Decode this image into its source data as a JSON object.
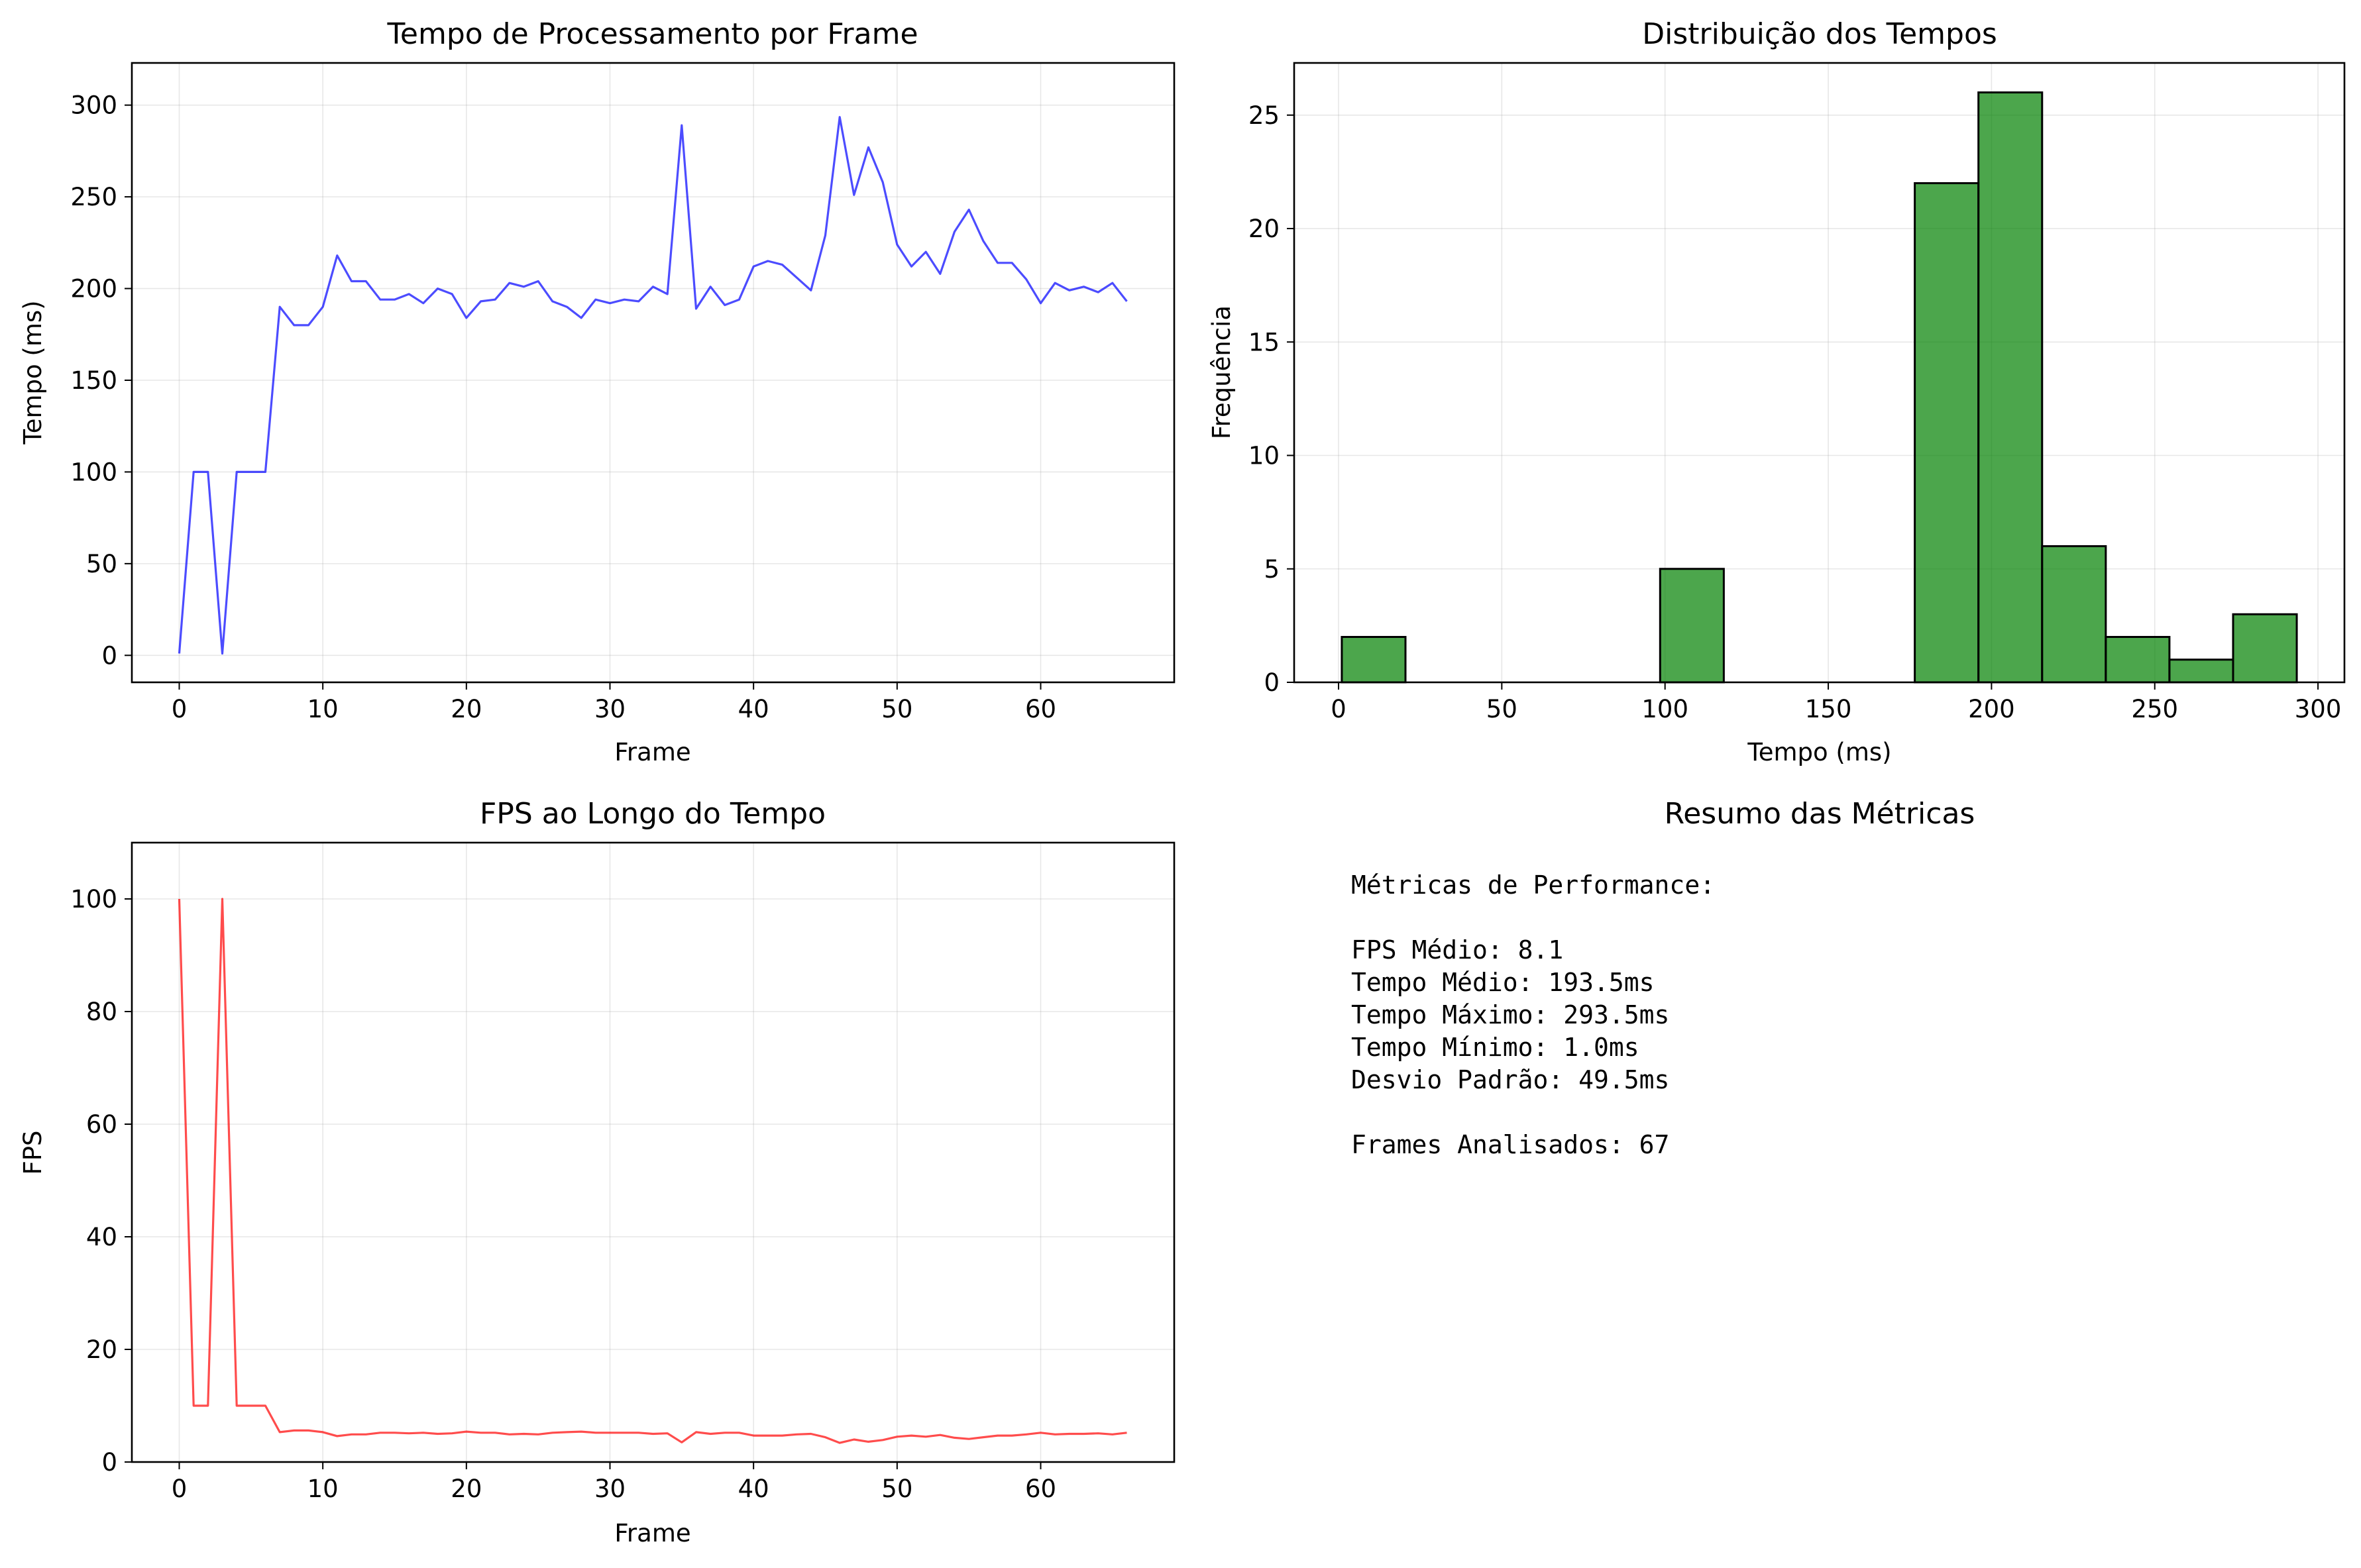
{
  "chart_data": [
    {
      "type": "line",
      "title": "Tempo de Processamento por Frame",
      "xlabel": "Frame",
      "ylabel": "Tempo (ms)",
      "xlim": [
        -3.3,
        69.3
      ],
      "ylim": [
        -14.7,
        323
      ],
      "xticks": [
        0,
        10,
        20,
        30,
        40,
        50,
        60
      ],
      "yticks": [
        0,
        50,
        100,
        150,
        200,
        250,
        300
      ],
      "grid": true,
      "color": "#0000ff",
      "series": [
        {
          "x": [
            0,
            1,
            2,
            3,
            4,
            5,
            6,
            7,
            8,
            9,
            10,
            11,
            12,
            13,
            14,
            15,
            16,
            17,
            18,
            19,
            20,
            21,
            22,
            23,
            24,
            25,
            26,
            27,
            28,
            29,
            30,
            31,
            32,
            33,
            34,
            35,
            36,
            37,
            38,
            39,
            40,
            41,
            42,
            43,
            44,
            45,
            46,
            47,
            48,
            49,
            50,
            51,
            52,
            53,
            54,
            55,
            56,
            57,
            58,
            59,
            60,
            61,
            62,
            63,
            64,
            65,
            66
          ],
          "values": [
            1,
            100,
            100,
            1,
            100,
            100,
            100,
            190,
            180,
            180,
            190,
            218,
            204,
            204,
            194,
            194,
            197,
            192,
            200,
            197,
            184,
            193,
            194,
            203,
            201,
            204,
            193,
            190,
            184,
            194,
            192,
            194,
            193,
            201,
            197,
            289,
            189,
            201,
            191,
            194,
            212,
            215,
            213,
            206,
            199,
            229,
            293.5,
            251,
            277,
            258,
            224,
            212,
            220,
            208,
            231,
            243,
            226,
            214,
            214,
            205,
            192,
            203,
            199,
            201,
            198,
            203,
            193
          ]
        }
      ]
    },
    {
      "type": "bar",
      "title": "Distribuição dos Tempos",
      "xlabel": "Tempo (ms)",
      "ylabel": "Frequência",
      "xlim": [
        -13.6,
        308.1
      ],
      "ylim": [
        0,
        27.3
      ],
      "xticks": [
        0,
        50,
        100,
        150,
        200,
        250,
        300
      ],
      "yticks": [
        0,
        5,
        10,
        15,
        20,
        25
      ],
      "grid": true,
      "color": "#008000",
      "bin_edges": [
        1,
        20.5,
        40,
        59.5,
        79,
        98.5,
        118,
        137.5,
        157,
        176.5,
        196,
        215.5,
        235,
        254.5,
        274,
        293.5
      ],
      "values": [
        2,
        0,
        0,
        0,
        0,
        5,
        0,
        0,
        0,
        22,
        26,
        6,
        2,
        1,
        3
      ]
    },
    {
      "type": "line",
      "title": "FPS ao Longo do Tempo",
      "xlabel": "Frame",
      "ylabel": "FPS",
      "xlim": [
        -3.3,
        69.3
      ],
      "ylim": [
        0,
        110
      ],
      "xticks": [
        0,
        10,
        20,
        30,
        40,
        50,
        60
      ],
      "yticks": [
        0,
        20,
        40,
        60,
        80,
        100
      ],
      "grid": true,
      "color": "#ff0000",
      "series": [
        {
          "x": [
            0,
            1,
            2,
            3,
            4,
            5,
            6,
            7,
            8,
            9,
            10,
            11,
            12,
            13,
            14,
            15,
            16,
            17,
            18,
            19,
            20,
            21,
            22,
            23,
            24,
            25,
            26,
            27,
            28,
            29,
            30,
            31,
            32,
            33,
            34,
            35,
            36,
            37,
            38,
            39,
            40,
            41,
            42,
            43,
            44,
            45,
            46,
            47,
            48,
            49,
            50,
            51,
            52,
            53,
            54,
            55,
            56,
            57,
            58,
            59,
            60,
            61,
            62,
            63,
            64,
            65,
            66
          ],
          "values": [
            100,
            10,
            10,
            100,
            10,
            10,
            10,
            5.3,
            5.6,
            5.6,
            5.3,
            4.6,
            4.9,
            4.9,
            5.2,
            5.2,
            5.1,
            5.2,
            5,
            5.1,
            5.4,
            5.2,
            5.2,
            4.9,
            5,
            4.9,
            5.2,
            5.3,
            5.4,
            5.2,
            5.2,
            5.2,
            5.2,
            5,
            5.1,
            3.5,
            5.3,
            5,
            5.2,
            5.2,
            4.7,
            4.7,
            4.7,
            4.9,
            5,
            4.4,
            3.4,
            4,
            3.6,
            3.9,
            4.5,
            4.7,
            4.5,
            4.8,
            4.3,
            4.1,
            4.4,
            4.7,
            4.7,
            4.9,
            5.2,
            4.9,
            5,
            5,
            5.1,
            4.9,
            5.2
          ]
        }
      ]
    }
  ],
  "summary": {
    "title": "Resumo das Métricas",
    "header": "Métricas de Performance:",
    "lines": [
      "FPS Médio: 8.1",
      "Tempo Médio: 193.5ms",
      "Tempo Máximo: 293.5ms",
      "Tempo Mínimo: 1.0ms",
      "Desvio Padrão: 49.5ms"
    ],
    "footer": "Frames Analisados: 67"
  }
}
